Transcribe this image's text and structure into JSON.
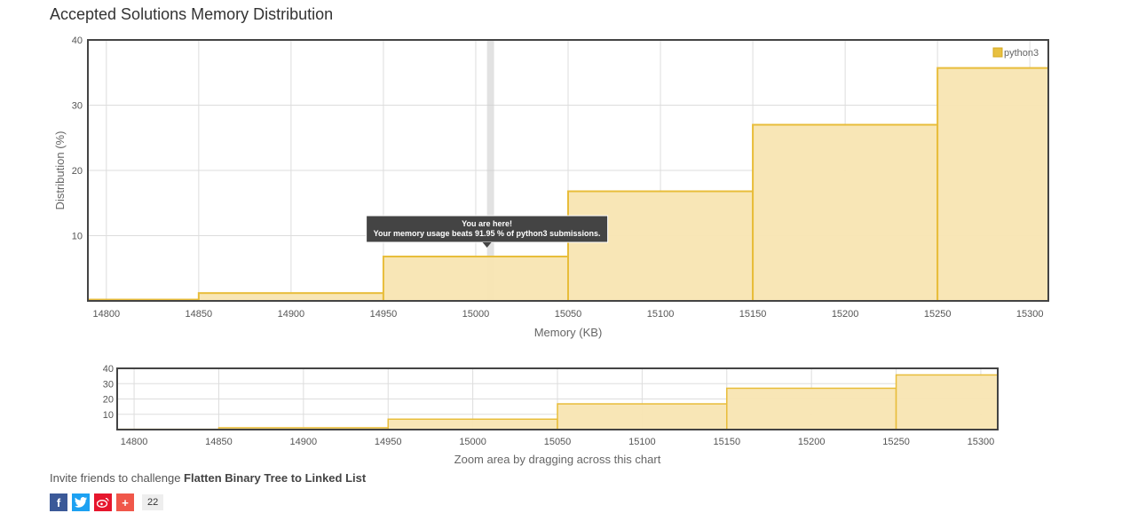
{
  "page": {
    "title": "Accepted Solutions Memory Distribution",
    "invite_text": "Invite friends to challenge ",
    "problem_name": "Flatten Binary Tree to Linked List",
    "share_count": "22",
    "share_icons": [
      "facebook-icon",
      "twitter-icon",
      "weibo-icon",
      "plus-icon"
    ]
  },
  "chart_data": [
    {
      "type": "bar",
      "xlabel": "Memory (KB)",
      "ylabel": "Distribution (%)",
      "xlim": [
        14790,
        15310
      ],
      "ylim": [
        0,
        40
      ],
      "xticks": [
        14800,
        14850,
        14900,
        14950,
        15000,
        15050,
        15100,
        15150,
        15200,
        15250,
        15300
      ],
      "yticks": [
        10,
        20,
        30,
        40
      ],
      "grid": true,
      "legend": {
        "position": "top-right",
        "entries": [
          "python3"
        ]
      },
      "color": "#e8b830",
      "fill": "#f8e5b2",
      "bins": [
        {
          "x0": 14790,
          "x1": 14850,
          "value": 0.2
        },
        {
          "x0": 14850,
          "x1": 14950,
          "value": 1.2
        },
        {
          "x0": 14950,
          "x1": 15050,
          "value": 6.8
        },
        {
          "x0": 15050,
          "x1": 15150,
          "value": 16.8
        },
        {
          "x0": 15150,
          "x1": 15250,
          "value": 27.0
        },
        {
          "x0": 15250,
          "x1": 15310,
          "value": 35.7
        }
      ],
      "marker": {
        "x": 15008
      },
      "tooltip": {
        "line1": "You are here!",
        "line2": "Your memory usage beats 91.95 % of python3 submissions."
      }
    },
    {
      "type": "bar",
      "xlabel": "Zoom area by dragging across this chart",
      "xlim": [
        14790,
        15310
      ],
      "ylim": [
        0,
        40
      ],
      "xticks": [
        14800,
        14850,
        14900,
        14950,
        15000,
        15050,
        15100,
        15150,
        15200,
        15250,
        15300
      ],
      "yticks": [
        10,
        20,
        30,
        40
      ],
      "grid": true,
      "bins": [
        {
          "x0": 14790,
          "x1": 14850,
          "value": 0.2
        },
        {
          "x0": 14850,
          "x1": 14950,
          "value": 1.2
        },
        {
          "x0": 14950,
          "x1": 15050,
          "value": 6.8
        },
        {
          "x0": 15050,
          "x1": 15150,
          "value": 16.8
        },
        {
          "x0": 15150,
          "x1": 15250,
          "value": 27.0
        },
        {
          "x0": 15250,
          "x1": 15310,
          "value": 35.7
        }
      ]
    }
  ]
}
